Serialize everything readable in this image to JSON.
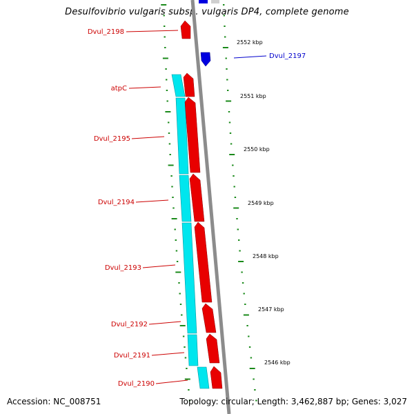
{
  "title": "Desulfovibrio vulgaris subsp. vulgaris DP4, complete genome",
  "footer": {
    "accession": "Accession: NC_008751",
    "topology": "Topology: circular; Length: 3,462,887 bp; Genes: 3,027"
  },
  "colors": {
    "forward_gene": "#e80000",
    "reverse_gene": "#0000e0",
    "operon_cyan": "#00e6ee",
    "backbone": "#8c8c8c",
    "tick_green": "#1a8a1a",
    "label_red": "#cc0000",
    "label_blue": "#0000cc"
  },
  "gene_labels": [
    {
      "name": "Dvul_2198",
      "color": "red"
    },
    {
      "name": "Dvul_2197",
      "color": "blue"
    },
    {
      "name": "atpC",
      "color": "red"
    },
    {
      "name": "Dvul_2195",
      "color": "red"
    },
    {
      "name": "Dvul_2194",
      "color": "red"
    },
    {
      "name": "Dvul_2193",
      "color": "red"
    },
    {
      "name": "Dvul_2192",
      "color": "red"
    },
    {
      "name": "Dvul_2191",
      "color": "red"
    },
    {
      "name": "Dvul_2190",
      "color": "red"
    }
  ],
  "scale_labels": [
    "2552 kbp",
    "2551 kbp",
    "2550 kbp",
    "2549 kbp",
    "2548 kbp",
    "2547 kbp",
    "2546 kbp"
  ]
}
